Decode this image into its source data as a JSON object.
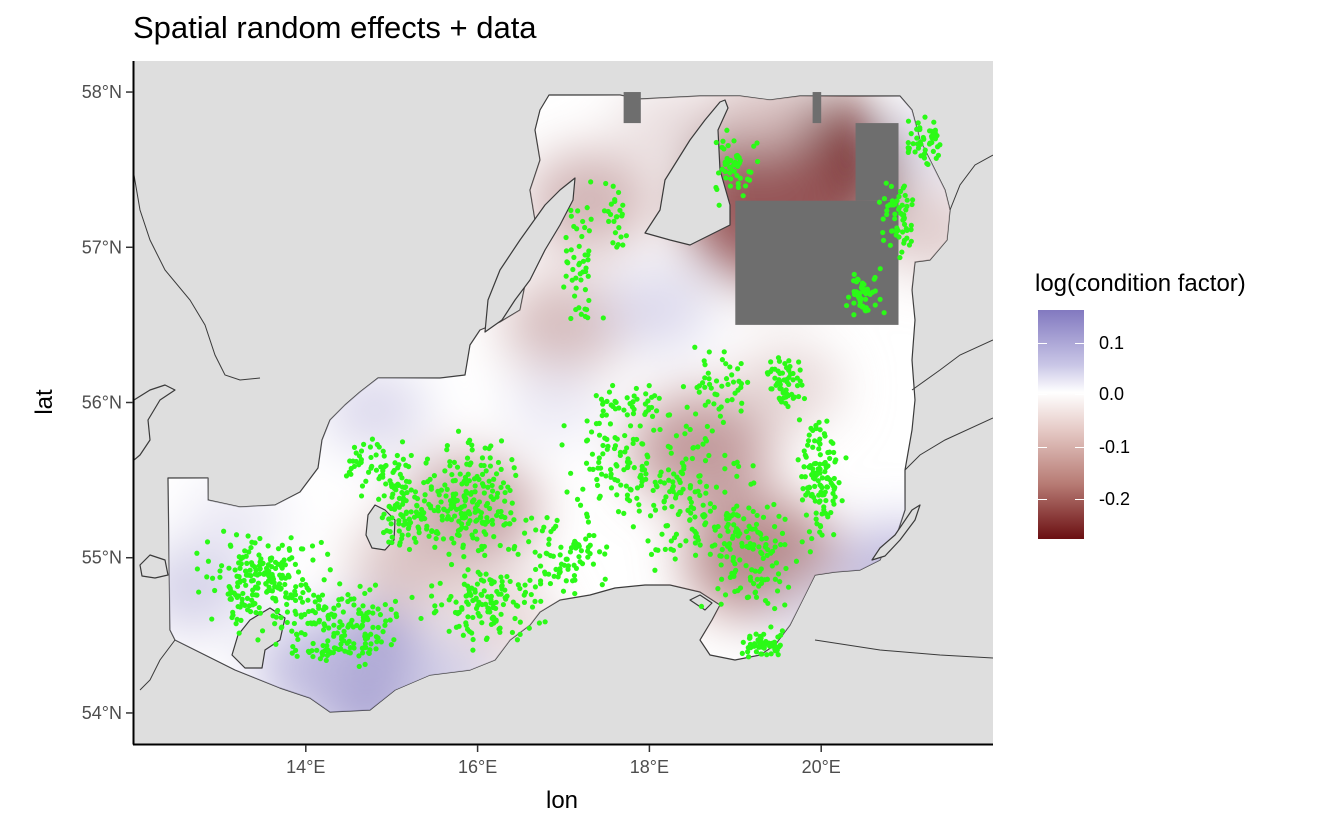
{
  "title": "Spatial random effects + data",
  "x_axis": {
    "title": "lon",
    "ticks": [
      {
        "value": 14,
        "label": "14°E"
      },
      {
        "value": 16,
        "label": "16°E"
      },
      {
        "value": 18,
        "label": "18°E"
      },
      {
        "value": 20,
        "label": "20°E"
      }
    ],
    "range": [
      12.0,
      22.0
    ]
  },
  "y_axis": {
    "title": "lat",
    "ticks": [
      {
        "value": 54,
        "label": "54°N"
      },
      {
        "value": 55,
        "label": "55°N"
      },
      {
        "value": 56,
        "label": "56°N"
      },
      {
        "value": 57,
        "label": "57°N"
      },
      {
        "value": 58,
        "label": "58°N"
      }
    ],
    "range": [
      53.8,
      58.2
    ]
  },
  "legend": {
    "title": "log(condition factor)",
    "labels": [
      "0.1",
      "0.0",
      "-0.1",
      "-0.2"
    ],
    "colors": {
      "high": "#8279c0",
      "mid": "#ffffff",
      "low": "#6b0f12"
    },
    "placement": "right"
  },
  "colors": {
    "land": "#dedede",
    "panel": "#ffffff",
    "coast": "#3a3a3a",
    "masked": "#6e6e6e",
    "points": "#2bfa17"
  },
  "chart_data": {
    "type": "map",
    "title": "Spatial random effects + data",
    "xlabel": "lon",
    "ylabel": "lat",
    "xlim": [
      12.0,
      22.0
    ],
    "ylim": [
      53.8,
      58.2
    ],
    "fill_scale": {
      "name": "log(condition factor)",
      "min": -0.26,
      "max": 0.16,
      "midpoint": 0.0
    },
    "masked_areas": [
      {
        "lon": [
          17.7,
          17.9
        ],
        "lat": [
          57.8,
          58.0
        ]
      },
      {
        "lon": [
          19.9,
          20.0
        ],
        "lat": [
          57.8,
          58.0
        ]
      },
      {
        "lon": [
          20.4,
          20.9
        ],
        "lat": [
          57.3,
          57.8
        ]
      },
      {
        "lon": [
          19.0,
          20.9
        ],
        "lat": [
          56.5,
          57.3
        ]
      }
    ],
    "effect_features": [
      {
        "lon": 19.7,
        "lat": 57.5,
        "value": -0.25
      },
      {
        "lon": 19.4,
        "lat": 57.2,
        "value": -0.18
      },
      {
        "lon": 19.3,
        "lat": 55.0,
        "value": -0.14
      },
      {
        "lon": 18.6,
        "lat": 55.7,
        "value": -0.12
      },
      {
        "lon": 15.9,
        "lat": 55.3,
        "value": -0.11
      },
      {
        "lon": 17.3,
        "lat": 57.3,
        "value": -0.09
      },
      {
        "lon": 17.0,
        "lat": 56.5,
        "value": -0.08
      },
      {
        "lon": 15.2,
        "lat": 54.95,
        "value": -0.07
      },
      {
        "lon": 16.3,
        "lat": 54.6,
        "value": -0.05
      },
      {
        "lon": 21.3,
        "lat": 57.1,
        "value": -0.06
      },
      {
        "lon": 19.6,
        "lat": 56.1,
        "value": -0.05
      },
      {
        "lon": 18.2,
        "lat": 57.8,
        "value": -0.04
      },
      {
        "lon": 19.3,
        "lat": 57.9,
        "value": -0.05
      },
      {
        "lon": 14.7,
        "lat": 54.25,
        "value": 0.15
      },
      {
        "lon": 14.1,
        "lat": 54.3,
        "value": 0.08
      },
      {
        "lon": 15.6,
        "lat": 54.2,
        "value": 0.06
      },
      {
        "lon": 12.7,
        "lat": 54.8,
        "value": 0.06
      },
      {
        "lon": 13.2,
        "lat": 55.25,
        "value": 0.03
      },
      {
        "lon": 18.1,
        "lat": 56.6,
        "value": 0.05
      },
      {
        "lon": 20.9,
        "lat": 54.9,
        "value": 0.09
      },
      {
        "lon": 21.4,
        "lat": 57.7,
        "value": 0.04
      },
      {
        "lon": 14.8,
        "lat": 55.95,
        "value": 0.05
      },
      {
        "lon": 16.9,
        "lat": 56.0,
        "value": 0.03
      },
      {
        "lon": 20.0,
        "lat": 54.6,
        "value": 0.04
      }
    ],
    "point_clusters": [
      {
        "lon": 13.5,
        "lat": 54.85,
        "spread": [
          1.0,
          0.4
        ],
        "n": 220
      },
      {
        "lon": 14.5,
        "lat": 54.6,
        "spread": [
          0.9,
          0.3
        ],
        "n": 120
      },
      {
        "lon": 14.3,
        "lat": 54.4,
        "spread": [
          0.8,
          0.12
        ],
        "n": 50
      },
      {
        "lon": 15.1,
        "lat": 55.3,
        "spread": [
          0.4,
          0.4
        ],
        "n": 90
      },
      {
        "lon": 15.9,
        "lat": 55.35,
        "spread": [
          0.8,
          0.55
        ],
        "n": 220
      },
      {
        "lon": 16.1,
        "lat": 54.7,
        "spread": [
          0.9,
          0.35
        ],
        "n": 130
      },
      {
        "lon": 17.0,
        "lat": 55.0,
        "spread": [
          0.8,
          0.35
        ],
        "n": 80
      },
      {
        "lon": 17.7,
        "lat": 55.6,
        "spread": [
          1.0,
          0.5
        ],
        "n": 110
      },
      {
        "lon": 18.5,
        "lat": 55.4,
        "spread": [
          0.9,
          0.6
        ],
        "n": 130
      },
      {
        "lon": 19.2,
        "lat": 55.0,
        "spread": [
          0.8,
          0.6
        ],
        "n": 120
      },
      {
        "lon": 19.3,
        "lat": 54.45,
        "spread": [
          0.3,
          0.12
        ],
        "n": 60
      },
      {
        "lon": 20.0,
        "lat": 55.5,
        "spread": [
          0.35,
          0.5
        ],
        "n": 120
      },
      {
        "lon": 19.6,
        "lat": 56.1,
        "spread": [
          0.3,
          0.3
        ],
        "n": 60
      },
      {
        "lon": 18.8,
        "lat": 56.1,
        "spread": [
          0.5,
          0.4
        ],
        "n": 50
      },
      {
        "lon": 20.5,
        "lat": 56.7,
        "spread": [
          0.3,
          0.2
        ],
        "n": 50
      },
      {
        "lon": 20.9,
        "lat": 57.2,
        "spread": [
          0.3,
          0.4
        ],
        "n": 60
      },
      {
        "lon": 21.2,
        "lat": 57.7,
        "spread": [
          0.3,
          0.25
        ],
        "n": 50
      },
      {
        "lon": 19.0,
        "lat": 57.5,
        "spread": [
          0.4,
          0.3
        ],
        "n": 50
      },
      {
        "lon": 17.2,
        "lat": 56.9,
        "spread": [
          0.3,
          0.6
        ],
        "n": 50
      },
      {
        "lon": 17.6,
        "lat": 57.2,
        "spread": [
          0.2,
          0.4
        ],
        "n": 25
      },
      {
        "lon": 17.8,
        "lat": 56.0,
        "spread": [
          0.6,
          0.2
        ],
        "n": 40
      },
      {
        "lon": 14.8,
        "lat": 55.6,
        "spread": [
          0.6,
          0.3
        ],
        "n": 50
      }
    ]
  }
}
